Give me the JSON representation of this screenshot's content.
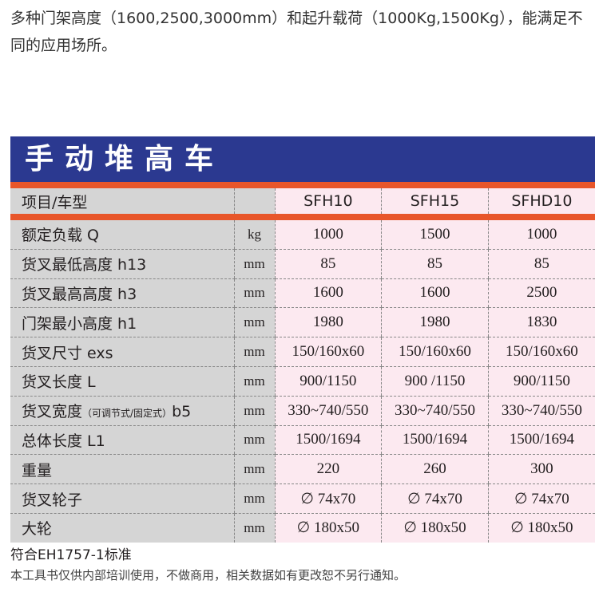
{
  "intro": "多种门架高度（1600,2500,3000mm）和起升载荷（1000Kg,1500Kg），能满足不同的应用场所。",
  "title": "手动堆高车",
  "header": {
    "label": "项目/车型",
    "unit": "",
    "models": [
      "SFH10",
      "SFH15",
      "SFHD10"
    ]
  },
  "rows": [
    {
      "label": "额定负载 Q",
      "note": "",
      "unit": "kg",
      "values": [
        "1000",
        "1500",
        "1000"
      ]
    },
    {
      "label": "货叉最低高度 h13",
      "note": "",
      "unit": "mm",
      "values": [
        "85",
        "85",
        "85"
      ]
    },
    {
      "label": "货叉最高高度 h3",
      "note": "",
      "unit": "mm",
      "values": [
        "1600",
        "1600",
        "2500"
      ]
    },
    {
      "label": "门架最小高度 h1",
      "note": "",
      "unit": "mm",
      "values": [
        "1980",
        "1980",
        "1830"
      ]
    },
    {
      "label": "货叉尺寸 exs",
      "note": "",
      "unit": "mm",
      "values": [
        "150/160x60",
        "150/160x60",
        "150/160x60"
      ]
    },
    {
      "label": "货叉长度 L",
      "note": "",
      "unit": "mm",
      "values": [
        "900/1150",
        "900 /1150",
        "900/1150"
      ]
    },
    {
      "label": "货叉宽度",
      "note": "（可调节式/固定式）",
      "label_suffix": "b5",
      "unit": "mm",
      "values": [
        "330~740/550",
        "330~740/550",
        "330~740/550"
      ]
    },
    {
      "label": "总体长度 L1",
      "note": "",
      "unit": "mm",
      "values": [
        "1500/1694",
        "1500/1694",
        "1500/1694"
      ]
    },
    {
      "label": "重量",
      "note": "",
      "unit": "mm",
      "values": [
        "220",
        "260",
        "300"
      ]
    },
    {
      "label": "货叉轮子",
      "note": "",
      "unit": "mm",
      "values": [
        "∅ 74x70",
        "∅ 74x70",
        "∅ 74x70"
      ]
    },
    {
      "label": "大轮",
      "note": "",
      "unit": "mm",
      "values": [
        "∅ 180x50",
        "∅ 180x50",
        "∅ 180x50"
      ]
    }
  ],
  "footer": {
    "standard": "符合EH1757-1标准",
    "disclaimer": "本工具书仅供内部培训使用，不做商用，相关数据如有更改恕不另行通知。"
  }
}
